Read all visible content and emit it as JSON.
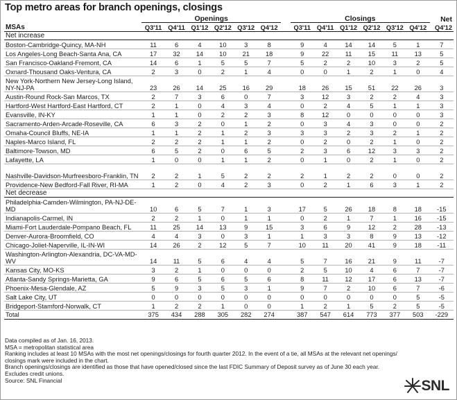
{
  "title": "Top metro areas for branch openings, closings",
  "headers": {
    "openings": "Openings",
    "closings": "Closings",
    "net_top": "Net",
    "msas": "MSAs",
    "net_bottom": "Q4'12",
    "quarters": [
      "Q3'11",
      "Q4'11",
      "Q1'12",
      "Q2'12",
      "Q3'12",
      "Q4'12"
    ]
  },
  "sections": [
    {
      "label": "Net increase",
      "rows": [
        {
          "name": "Boston-Cambridge-Quincy, MA-NH",
          "open": [
            "11",
            "6",
            "4",
            "10",
            "3",
            "8"
          ],
          "close": [
            "9",
            "4",
            "14",
            "14",
            "5",
            "1"
          ],
          "net": "7"
        },
        {
          "name": "Los Angeles-Long Beach-Santa Ana, CA",
          "open": [
            "17",
            "32",
            "14",
            "10",
            "21",
            "18"
          ],
          "close": [
            "9",
            "22",
            "11",
            "15",
            "11",
            "13"
          ],
          "net": "5"
        },
        {
          "name": "San Francisco-Oakland-Fremont, CA",
          "open": [
            "14",
            "6",
            "1",
            "5",
            "5",
            "7"
          ],
          "close": [
            "5",
            "2",
            "2",
            "10",
            "3",
            "2"
          ],
          "net": "5"
        },
        {
          "name": "Oxnard-Thousand Oaks-Ventura, CA",
          "open": [
            "2",
            "3",
            "0",
            "2",
            "1",
            "4"
          ],
          "close": [
            "0",
            "0",
            "1",
            "2",
            "1",
            "0"
          ],
          "net": "4"
        },
        {
          "name": "New York-Northern New Jersey-Long Island, NY-NJ-PA",
          "open": [
            "23",
            "26",
            "14",
            "25",
            "16",
            "29"
          ],
          "close": [
            "18",
            "26",
            "15",
            "51",
            "22",
            "26"
          ],
          "net": "3"
        },
        {
          "name": "Austin-Round Rock-San Marcos, TX",
          "open": [
            "2",
            "7",
            "3",
            "6",
            "0",
            "7"
          ],
          "close": [
            "3",
            "12",
            "3",
            "2",
            "2",
            "4"
          ],
          "net": "3"
        },
        {
          "name": "Hartford-West Hartford-East Hartford, CT",
          "open": [
            "2",
            "1",
            "0",
            "4",
            "3",
            "4"
          ],
          "close": [
            "0",
            "2",
            "4",
            "5",
            "1",
            "1"
          ],
          "net": "3"
        },
        {
          "name": "Evansville, IN-KY",
          "open": [
            "1",
            "1",
            "0",
            "2",
            "2",
            "3"
          ],
          "close": [
            "8",
            "12",
            "0",
            "0",
            "0",
            "0"
          ],
          "net": "3"
        },
        {
          "name": "Sacramento-Arden-Arcade-Roseville, CA",
          "open": [
            "6",
            "3",
            "2",
            "0",
            "1",
            "2"
          ],
          "close": [
            "0",
            "3",
            "4",
            "3",
            "0",
            "0"
          ],
          "net": "2"
        },
        {
          "name": "Omaha-Council Bluffs, NE-IA",
          "open": [
            "1",
            "1",
            "2",
            "1",
            "2",
            "3"
          ],
          "close": [
            "3",
            "3",
            "2",
            "3",
            "2",
            "1"
          ],
          "net": "2"
        },
        {
          "name": "Naples-Marco Island, FL",
          "open": [
            "2",
            "2",
            "2",
            "1",
            "1",
            "2"
          ],
          "close": [
            "0",
            "2",
            "0",
            "2",
            "1",
            "0"
          ],
          "net": "2"
        },
        {
          "name": "Baltimore-Towson, MD",
          "open": [
            "6",
            "5",
            "2",
            "0",
            "6",
            "5"
          ],
          "close": [
            "2",
            "3",
            "6",
            "12",
            "3",
            "3"
          ],
          "net": "2"
        },
        {
          "name": "Lafayette, LA",
          "open": [
            "1",
            "0",
            "0",
            "1",
            "1",
            "2"
          ],
          "close": [
            "0",
            "1",
            "0",
            "2",
            "1",
            "0"
          ],
          "net": "2"
        },
        {
          "name": "Nashville-Davidson-Murfreesboro-Franklin, TN",
          "open": [
            "2",
            "2",
            "1",
            "5",
            "2",
            "2"
          ],
          "close": [
            "2",
            "1",
            "2",
            "2",
            "0",
            "0"
          ],
          "net": "2"
        },
        {
          "name": "Providence-New Bedford-Fall River, RI-MA",
          "open": [
            "1",
            "2",
            "0",
            "4",
            "2",
            "3"
          ],
          "close": [
            "0",
            "2",
            "1",
            "6",
            "3",
            "1"
          ],
          "net": "2"
        }
      ]
    },
    {
      "label": "Net decrease",
      "rows": [
        {
          "name": "Philadelphia-Camden-Wilmington, PA-NJ-DE-MD",
          "open": [
            "10",
            "6",
            "5",
            "7",
            "1",
            "3"
          ],
          "close": [
            "17",
            "5",
            "26",
            "18",
            "8",
            "18"
          ],
          "net": "-15"
        },
        {
          "name": "Indianapolis-Carmel, IN",
          "open": [
            "2",
            "2",
            "1",
            "0",
            "1",
            "1"
          ],
          "close": [
            "0",
            "2",
            "1",
            "7",
            "1",
            "16"
          ],
          "net": "-15"
        },
        {
          "name": "Miami-Fort Lauderdale-Pompano Beach, FL",
          "open": [
            "11",
            "25",
            "14",
            "13",
            "9",
            "15"
          ],
          "close": [
            "3",
            "6",
            "9",
            "12",
            "2",
            "28"
          ],
          "net": "-13"
        },
        {
          "name": "Denver-Aurora-Broomfield, CO",
          "open": [
            "4",
            "4",
            "3",
            "0",
            "3",
            "1"
          ],
          "close": [
            "1",
            "3",
            "3",
            "8",
            "9",
            "13"
          ],
          "net": "-12"
        },
        {
          "name": "Chicago-Joliet-Naperville, IL-IN-WI",
          "open": [
            "14",
            "26",
            "2",
            "12",
            "5",
            "7"
          ],
          "close": [
            "10",
            "11",
            "20",
            "41",
            "9",
            "18"
          ],
          "net": "-11"
        },
        {
          "name": "Washington-Arlington-Alexandria, DC-VA-MD-WV",
          "open": [
            "14",
            "11",
            "5",
            "6",
            "4",
            "4"
          ],
          "close": [
            "5",
            "7",
            "16",
            "21",
            "9",
            "11"
          ],
          "net": "-7"
        },
        {
          "name": "Kansas City, MO-KS",
          "open": [
            "3",
            "2",
            "1",
            "0",
            "0",
            "0"
          ],
          "close": [
            "2",
            "5",
            "10",
            "4",
            "6",
            "7"
          ],
          "net": "-7"
        },
        {
          "name": "Atlanta-Sandy Springs-Marietta, GA",
          "open": [
            "9",
            "6",
            "5",
            "6",
            "5",
            "6"
          ],
          "close": [
            "8",
            "11",
            "12",
            "17",
            "6",
            "13"
          ],
          "net": "-7"
        },
        {
          "name": "Phoenix-Mesa-Glendale, AZ",
          "open": [
            "5",
            "9",
            "3",
            "5",
            "3",
            "1"
          ],
          "close": [
            "9",
            "7",
            "2",
            "10",
            "6",
            "7"
          ],
          "net": "-6"
        },
        {
          "name": "Salt Lake City, UT",
          "open": [
            "0",
            "0",
            "0",
            "0",
            "0",
            "0"
          ],
          "close": [
            "0",
            "0",
            "0",
            "0",
            "0",
            "5"
          ],
          "net": "-5"
        },
        {
          "name": "Bridgeport-Stamford-Norwalk, CT",
          "open": [
            "1",
            "2",
            "2",
            "1",
            "0",
            "0"
          ],
          "close": [
            "1",
            "2",
            "1",
            "5",
            "2",
            "5"
          ],
          "net": "-5"
        }
      ]
    }
  ],
  "totals": {
    "label": "Total",
    "open": [
      "375",
      "434",
      "288",
      "305",
      "282",
      "274"
    ],
    "close": [
      "387",
      "547",
      "614",
      "773",
      "377",
      "503"
    ],
    "net": "-229"
  },
  "notes": [
    "Data compiled as of Jan. 16, 2013.",
    "MSA = metropolitan statistical area",
    "Ranking includes at least 10 MSAs with the most net openings/closings for fourth quarter 2012. In the event of a tie, all MSAs at the relevant net openings/",
    "closings mark were included in the chart.",
    "Branch openings/closings are identified as those that have opened/closed since the last FDIC Summary of Deposit survey as of June 30 each year.",
    "Excludes credit unions.",
    "Source: SNL Financial"
  ],
  "logo": {
    "text": "SNL",
    "icon": "snl-starburst-icon",
    "color": "#2b2b2b"
  }
}
